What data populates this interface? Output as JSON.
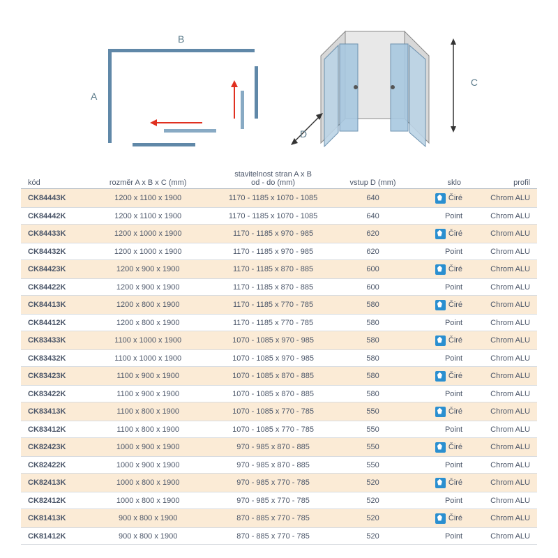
{
  "diagram": {
    "labels": {
      "A": "A",
      "B": "B",
      "C": "C",
      "D": "D"
    },
    "colors": {
      "frame": "#6088a8",
      "panel": "#88aac4",
      "arrow": "#e03020",
      "label": "#5a7a8a",
      "glass_fill": "#bcd4e6"
    }
  },
  "table": {
    "headers": {
      "kod": "kód",
      "dim": "rozměr  A x B x C  (mm)",
      "adj_line1": "stavitelnost stran A x B",
      "adj_line2": "od - do  (mm)",
      "entry": "vstup D (mm)",
      "glass": "sklo",
      "profil": "profil"
    },
    "rows": [
      {
        "kod": "CK84443K",
        "dim": "1200 x 1100 x 1900",
        "adj": "1170 - 1185 x 1070 - 1085",
        "d": "640",
        "glass": "Čiré",
        "icon": true,
        "profil": "Chrom ALU"
      },
      {
        "kod": "CK84442K",
        "dim": "1200 x 1100 x 1900",
        "adj": "1170 - 1185 x 1070 - 1085",
        "d": "640",
        "glass": "Point",
        "icon": false,
        "profil": "Chrom ALU"
      },
      {
        "kod": "CK84433K",
        "dim": "1200 x 1000 x 1900",
        "adj": "1170 - 1185 x 970 - 985",
        "d": "620",
        "glass": "Čiré",
        "icon": true,
        "profil": "Chrom ALU"
      },
      {
        "kod": "CK84432K",
        "dim": "1200 x 1000 x 1900",
        "adj": "1170 - 1185 x 970 - 985",
        "d": "620",
        "glass": "Point",
        "icon": false,
        "profil": "Chrom ALU"
      },
      {
        "kod": "CK84423K",
        "dim": "1200 x 900 x 1900",
        "adj": "1170 - 1185 x 870 - 885",
        "d": "600",
        "glass": "Čiré",
        "icon": true,
        "profil": "Chrom ALU"
      },
      {
        "kod": "CK84422K",
        "dim": "1200 x 900 x 1900",
        "adj": "1170 - 1185 x 870 - 885",
        "d": "600",
        "glass": "Point",
        "icon": false,
        "profil": "Chrom ALU"
      },
      {
        "kod": "CK84413K",
        "dim": "1200 x 800 x 1900",
        "adj": "1170 - 1185 x 770 - 785",
        "d": "580",
        "glass": "Čiré",
        "icon": true,
        "profil": "Chrom ALU"
      },
      {
        "kod": "CK84412K",
        "dim": "1200 x 800 x 1900",
        "adj": "1170 - 1185 x 770 - 785",
        "d": "580",
        "glass": "Point",
        "icon": false,
        "profil": "Chrom ALU"
      },
      {
        "kod": "CK83433K",
        "dim": "1100 x 1000 x 1900",
        "adj": "1070 - 1085 x 970 - 985",
        "d": "580",
        "glass": "Čiré",
        "icon": true,
        "profil": "Chrom ALU"
      },
      {
        "kod": "CK83432K",
        "dim": "1100 x 1000 x 1900",
        "adj": "1070 - 1085 x 970 - 985",
        "d": "580",
        "glass": "Point",
        "icon": false,
        "profil": "Chrom ALU"
      },
      {
        "kod": "CK83423K",
        "dim": "1100 x 900 x 1900",
        "adj": "1070 - 1085 x 870 - 885",
        "d": "580",
        "glass": "Čiré",
        "icon": true,
        "profil": "Chrom ALU"
      },
      {
        "kod": "CK83422K",
        "dim": "1100 x 900 x 1900",
        "adj": "1070 - 1085 x 870 - 885",
        "d": "580",
        "glass": "Point",
        "icon": false,
        "profil": "Chrom ALU"
      },
      {
        "kod": "CK83413K",
        "dim": "1100 x 800 x 1900",
        "adj": "1070 - 1085 x 770 - 785",
        "d": "550",
        "glass": "Čiré",
        "icon": true,
        "profil": "Chrom ALU"
      },
      {
        "kod": "CK83412K",
        "dim": "1100 x 800 x 1900",
        "adj": "1070 - 1085 x 770 - 785",
        "d": "550",
        "glass": "Point",
        "icon": false,
        "profil": "Chrom ALU"
      },
      {
        "kod": "CK82423K",
        "dim": "1000 x 900 x 1900",
        "adj": "970 - 985 x 870 - 885",
        "d": "550",
        "glass": "Čiré",
        "icon": true,
        "profil": "Chrom ALU"
      },
      {
        "kod": "CK82422K",
        "dim": "1000 x 900 x 1900",
        "adj": "970 - 985 x 870 - 885",
        "d": "550",
        "glass": "Point",
        "icon": false,
        "profil": "Chrom ALU"
      },
      {
        "kod": "CK82413K",
        "dim": "1000 x 800 x 1900",
        "adj": "970 - 985 x 770 - 785",
        "d": "520",
        "glass": "Čiré",
        "icon": true,
        "profil": "Chrom ALU"
      },
      {
        "kod": "CK82412K",
        "dim": "1000 x 800 x 1900",
        "adj": "970 - 985 x 770 - 785",
        "d": "520",
        "glass": "Point",
        "icon": false,
        "profil": "Chrom ALU"
      },
      {
        "kod": "CK81413K",
        "dim": "900 x 800 x 1900",
        "adj": "870 - 885 x 770 - 785",
        "d": "520",
        "glass": "Čiré",
        "icon": true,
        "profil": "Chrom ALU"
      },
      {
        "kod": "CK81412K",
        "dim": "900 x 800 x 1900",
        "adj": "870 - 885 x 770 - 785",
        "d": "520",
        "glass": "Point",
        "icon": false,
        "profil": "Chrom ALU"
      }
    ]
  },
  "styling": {
    "stripe_bg": "#fbebd6",
    "header_border": "#b0b8c0",
    "row_border": "#d8dce0",
    "text_color": "#4a5568",
    "font_size_body": 11,
    "font_size_label": 14,
    "icon_bg": "#2a8fd0"
  }
}
